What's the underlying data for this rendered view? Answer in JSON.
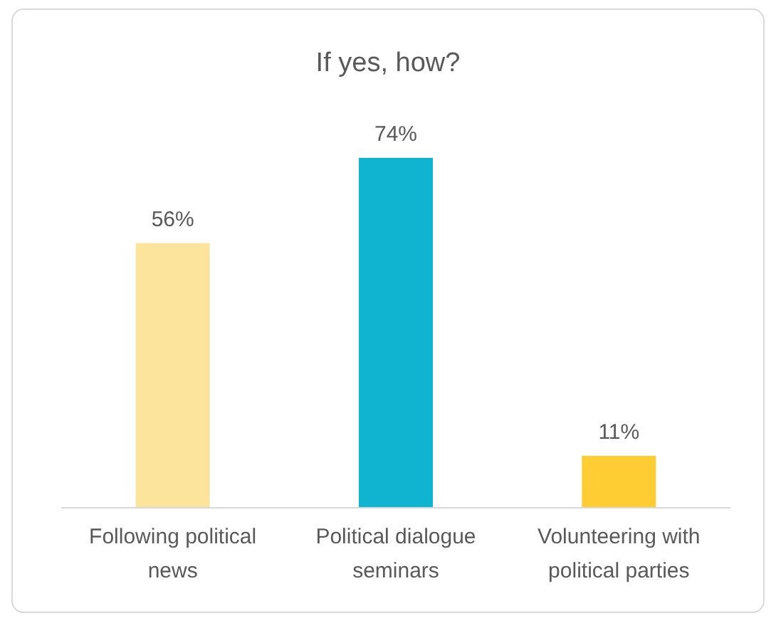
{
  "chart_data": {
    "type": "bar",
    "title": "If yes, how?",
    "categories": [
      "Following political news",
      "Political dialogue seminars",
      "Volunteering with political parties"
    ],
    "values": [
      56,
      74,
      11
    ],
    "colors": [
      "#fde49c",
      "#10b4d0",
      "#fecd34"
    ],
    "value_labels": [
      "56%",
      "74%",
      "11%"
    ]
  }
}
